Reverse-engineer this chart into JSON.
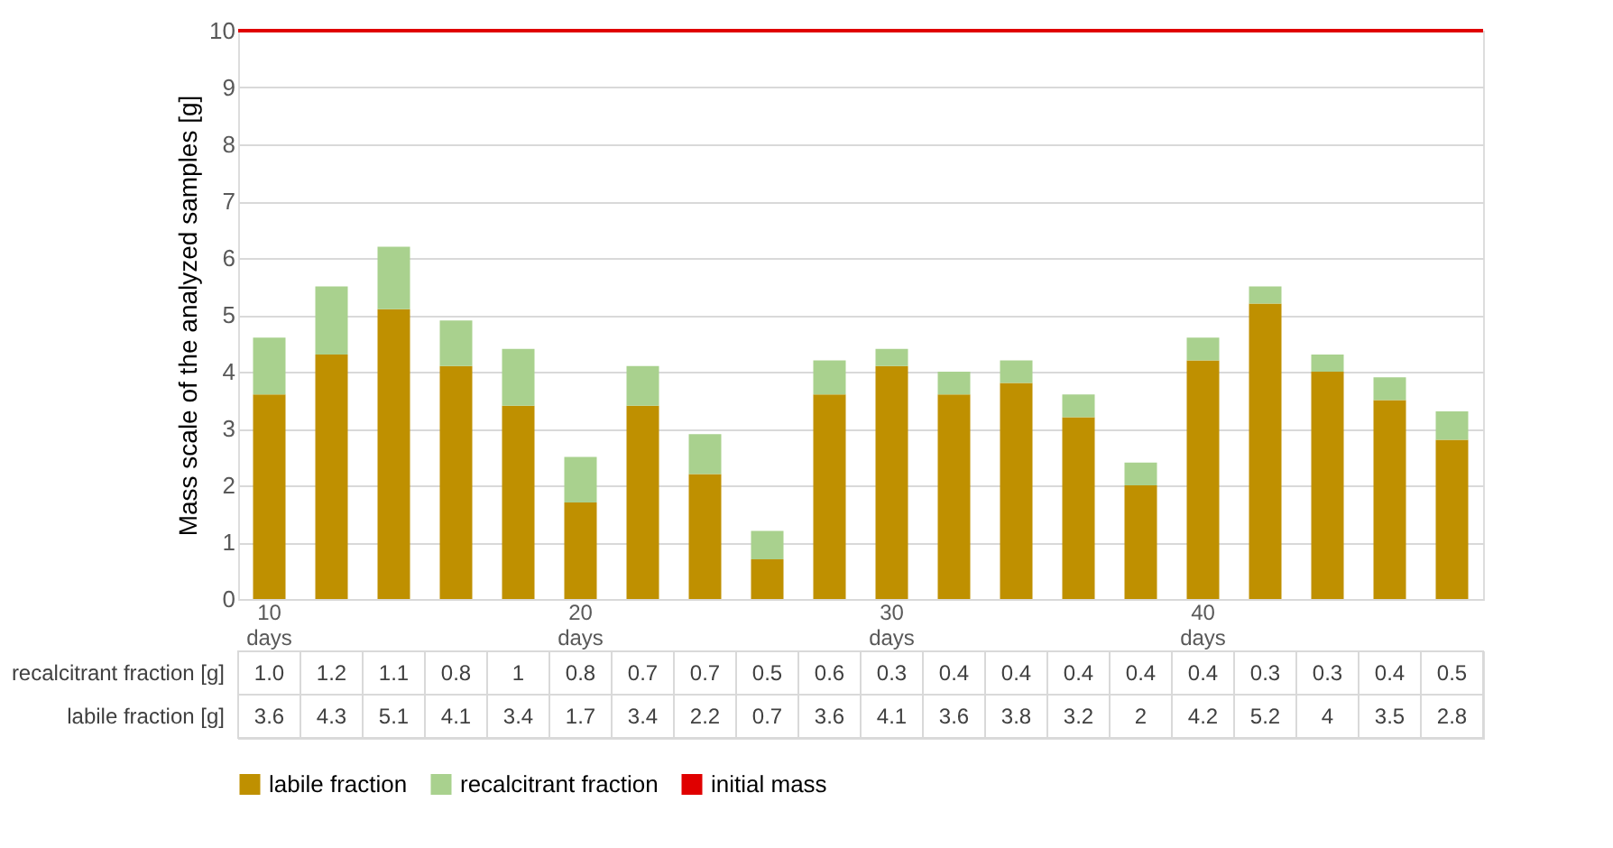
{
  "chart_data": {
    "type": "bar",
    "stacked": true,
    "ylabel": "Mass scale of the analyzed samples [g]",
    "categories": [
      "10 days",
      null,
      null,
      null,
      null,
      "20 days",
      null,
      null,
      null,
      null,
      "30 days",
      null,
      null,
      null,
      null,
      "40 days",
      null,
      null,
      null,
      null
    ],
    "series": [
      {
        "name": "labile fraction",
        "color": "#bf9000",
        "values": [
          3.6,
          4.3,
          5.1,
          4.1,
          3.4,
          1.7,
          3.4,
          2.2,
          0.7,
          3.6,
          4.1,
          3.6,
          3.8,
          3.2,
          2,
          4.2,
          5.2,
          4,
          3.5,
          2.8
        ],
        "value_labels": [
          "3.6",
          "4.3",
          "5.1",
          "4.1",
          "3.4",
          "1.7",
          "3.4",
          "2.2",
          "0.7",
          "3.6",
          "4.1",
          "3.6",
          "3.8",
          "3.2",
          "2",
          "4.2",
          "5.2",
          "4",
          "3.5",
          "2.8"
        ]
      },
      {
        "name": "recalcitrant fraction",
        "color": "#a9d18e",
        "values": [
          1.0,
          1.2,
          1.1,
          0.8,
          1,
          0.8,
          0.7,
          0.7,
          0.5,
          0.6,
          0.3,
          0.4,
          0.4,
          0.4,
          0.4,
          0.4,
          0.3,
          0.3,
          0.4,
          0.5
        ],
        "value_labels": [
          "1.0",
          "1.2",
          "1.1",
          "0.8",
          "1",
          "0.8",
          "0.7",
          "0.7",
          "0.5",
          "0.6",
          "0.3",
          "0.4",
          "0.4",
          "0.4",
          "0.4",
          "0.4",
          "0.3",
          "0.3",
          "0.4",
          "0.5"
        ]
      }
    ],
    "annotations": [
      "labile fraction [g]",
      "recalcitrant fraction [g]"
    ],
    "ref_lines": [
      {
        "axis": "y",
        "value": 10,
        "label": "initial mass",
        "color": "#e00000"
      }
    ],
    "ylim": [
      0,
      10
    ],
    "yticks": [
      0,
      1,
      2,
      3,
      4,
      5,
      6,
      7,
      8,
      9,
      10
    ],
    "grid": "y",
    "legend": "bottom"
  }
}
